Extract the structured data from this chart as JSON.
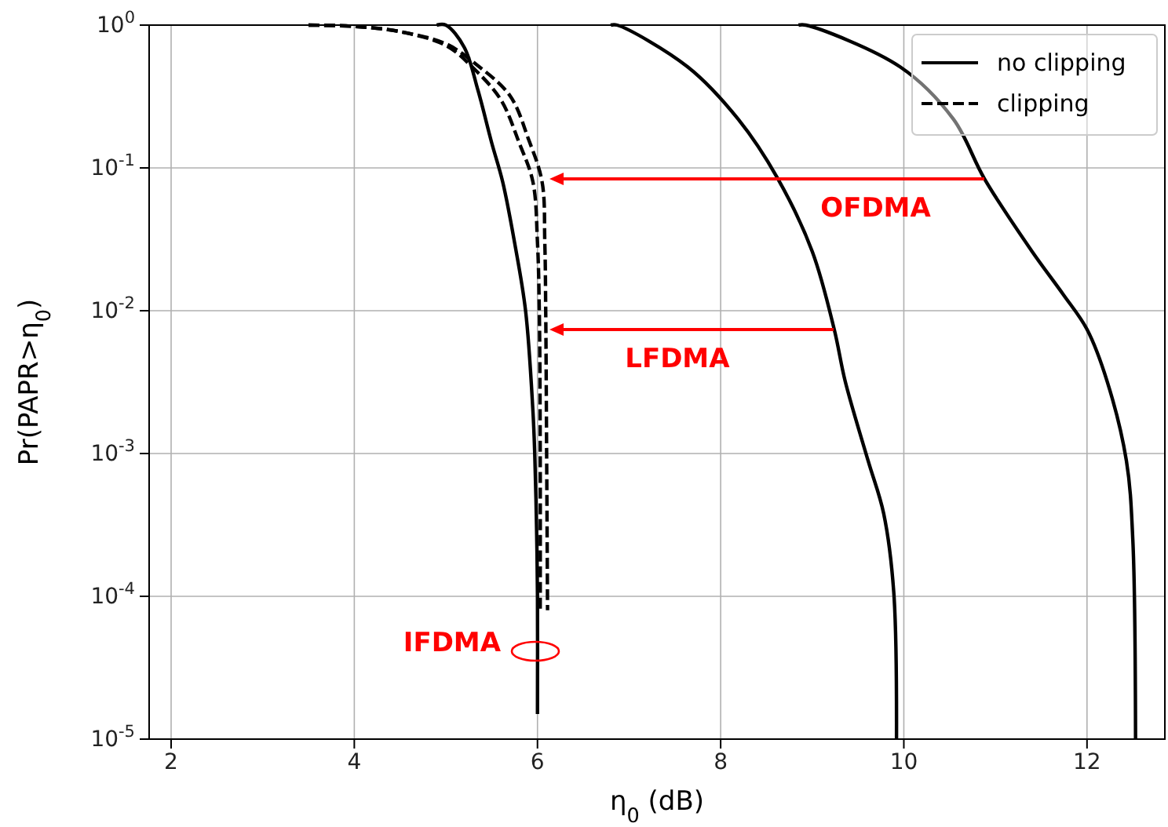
{
  "chart_data": {
    "type": "line",
    "xlabel": "η$_{0}$ (dB)",
    "ylabel": "Pr(PAPR>η$_{0}$)",
    "log": "y",
    "grid": true,
    "legend": "top right",
    "xlim": [
      1.76,
      12.85
    ],
    "xticks": [
      2,
      4,
      6,
      8,
      10,
      12
    ],
    "ylim": [
      1e-05,
      1
    ],
    "yticks": [
      {
        "value": 1e-05,
        "label": "10$^{-5}$"
      },
      {
        "value": 0.0001,
        "label": "10$^{-4}$"
      },
      {
        "value": 0.001,
        "label": "10$^{-3}$"
      },
      {
        "value": 0.01,
        "label": "10$^{-2}$"
      },
      {
        "value": 0.1,
        "label": "10$^{-1}$"
      },
      {
        "value": 1,
        "label": "10$^{0}$"
      }
    ],
    "series": [
      {
        "name": "no clipping",
        "color": "#000000",
        "line_style": "solid",
        "x": [
          4.9,
          5.0,
          5.2,
          5.35,
          5.5,
          5.62,
          5.75,
          5.87,
          5.95,
          5.97,
          5.99,
          6.0,
          6.0
        ],
        "values": [
          1,
          1,
          0.7,
          0.35,
          0.15,
          0.08,
          0.03,
          0.01,
          0.002,
          0.001,
          0.0003,
          0.0001,
          1.5e-05
        ]
      },
      {
        "color": "#000000",
        "line_style": "solid",
        "x": [
          6.8,
          6.87,
          7.64,
          8.19,
          8.62,
          9.0,
          9.24,
          9.36,
          9.61,
          9.78,
          9.89,
          9.92
        ],
        "values": [
          1,
          1,
          0.51,
          0.22,
          0.085,
          0.026,
          0.0074,
          0.0032,
          0.00089,
          0.00038,
          0.000107,
          1e-05
        ]
      },
      {
        "color": "#000000",
        "line_style": "solid",
        "x": [
          8.85,
          8.93,
          9.96,
          10.54,
          10.88,
          11.4,
          11.74,
          12.0,
          12.22,
          12.43,
          12.5,
          12.53
        ],
        "values": [
          1,
          1,
          0.51,
          0.22,
          0.084,
          0.026,
          0.013,
          0.0074,
          0.0032,
          0.00089,
          0.00025,
          1e-05
        ]
      },
      {
        "name": "clipping",
        "color": "#000000",
        "line_style": "dashed",
        "x": [
          3.5,
          4,
          4.5,
          5,
          5.3,
          5.6,
          5.8,
          5.95,
          6.0,
          6.02,
          6.03,
          6.03
        ],
        "values": [
          1,
          0.98,
          0.9,
          0.72,
          0.5,
          0.3,
          0.15,
          0.08,
          0.03,
          0.01,
          0.001,
          8e-05
        ]
      },
      {
        "color": "#000000",
        "line_style": "dashed",
        "x": [
          3.5,
          4,
          4.5,
          5,
          5.3,
          5.7,
          5.9,
          6.05,
          6.08,
          6.09,
          6.1,
          6.11
        ],
        "values": [
          1,
          0.98,
          0.9,
          0.74,
          0.55,
          0.32,
          0.16,
          0.08,
          0.03,
          0.01,
          0.001,
          8e-05
        ]
      }
    ],
    "annotations": [
      "OFDMA",
      "LFDMA",
      "IFDMA"
    ]
  }
}
